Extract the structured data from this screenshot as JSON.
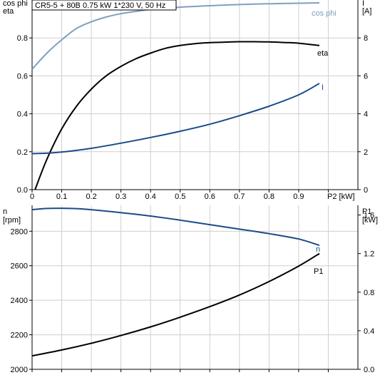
{
  "title": "CR5-5 + 80B   0.75 kW   1*230 V, 50 Hz",
  "colors": {
    "dark_curve": "#000000",
    "blue_curve": "#1a4c8a",
    "light_blue_curve": "#7f9fbf",
    "grid": "#cfcfcf"
  },
  "chart_data": [
    {
      "type": "line",
      "xlabel": "P2 [kW]",
      "x_ticks": [
        "0",
        "0.1",
        "0.2",
        "0.3",
        "0.4",
        "0.5",
        "0.6",
        "0.7",
        "0.8",
        "0.9"
      ],
      "xlim": [
        0,
        1.1
      ],
      "left_axis": {
        "label_top": "cos phi",
        "label_bottom": "eta",
        "ylim": [
          0,
          1
        ],
        "ticks": [
          "0.0",
          "0.2",
          "0.4",
          "0.6",
          "0.8"
        ]
      },
      "right_axis": {
        "label_top": "I",
        "label_bottom": "[A]",
        "ylim": [
          0,
          10
        ],
        "ticks": [
          "0",
          "2",
          "4",
          "6",
          "8"
        ]
      },
      "grid": true,
      "series": [
        {
          "name": "cos phi",
          "axis": "left",
          "color": "#7f9fbf",
          "x": [
            0,
            0.05,
            0.1,
            0.15,
            0.2,
            0.25,
            0.3,
            0.35,
            0.4,
            0.5,
            0.6,
            0.7,
            0.8,
            0.9,
            0.97
          ],
          "y": [
            0.635,
            0.72,
            0.79,
            0.85,
            0.885,
            0.91,
            0.928,
            0.94,
            0.95,
            0.962,
            0.97,
            0.976,
            0.98,
            0.983,
            0.985
          ]
        },
        {
          "name": "eta",
          "axis": "left",
          "color": "#000000",
          "x": [
            0.01,
            0.05,
            0.1,
            0.15,
            0.2,
            0.25,
            0.3,
            0.35,
            0.4,
            0.45,
            0.5,
            0.55,
            0.6,
            0.65,
            0.7,
            0.75,
            0.8,
            0.85,
            0.9,
            0.97
          ],
          "y": [
            0.0,
            0.16,
            0.32,
            0.44,
            0.53,
            0.6,
            0.65,
            0.69,
            0.72,
            0.745,
            0.76,
            0.77,
            0.775,
            0.778,
            0.78,
            0.78,
            0.779,
            0.776,
            0.772,
            0.76
          ]
        },
        {
          "name": "I",
          "axis": "right",
          "color": "#1a4c8a",
          "x": [
            0,
            0.05,
            0.1,
            0.15,
            0.2,
            0.3,
            0.4,
            0.5,
            0.6,
            0.7,
            0.8,
            0.9,
            0.97
          ],
          "y": [
            1.9,
            1.92,
            1.98,
            2.07,
            2.18,
            2.45,
            2.75,
            3.08,
            3.45,
            3.9,
            4.4,
            5.0,
            5.6
          ]
        }
      ]
    },
    {
      "type": "line",
      "xlim": [
        0,
        1.1
      ],
      "left_axis": {
        "label_top": "n",
        "label_bottom": "[rpm]",
        "ylim": [
          2000,
          2950
        ],
        "ticks": [
          "2000",
          "2200",
          "2400",
          "2600",
          "2800"
        ]
      },
      "right_axis": {
        "label_top": "P1",
        "label_bottom": "[kW]",
        "ylim": [
          0,
          1.7
        ],
        "ticks": [
          "0.0",
          "0.4",
          "0.8",
          "1.2",
          "1.6"
        ]
      },
      "grid": true,
      "series": [
        {
          "name": "n",
          "axis": "left",
          "color": "#1a4c8a",
          "x": [
            0,
            0.05,
            0.1,
            0.15,
            0.2,
            0.3,
            0.4,
            0.5,
            0.6,
            0.7,
            0.8,
            0.9,
            0.97
          ],
          "y": [
            2925,
            2932,
            2933,
            2931,
            2925,
            2908,
            2888,
            2864,
            2838,
            2812,
            2786,
            2755,
            2718
          ]
        },
        {
          "name": "P1",
          "axis": "right",
          "color": "#000000",
          "x": [
            0,
            0.1,
            0.2,
            0.3,
            0.4,
            0.5,
            0.6,
            0.7,
            0.8,
            0.9,
            0.97
          ],
          "y": [
            0.14,
            0.2,
            0.27,
            0.35,
            0.44,
            0.54,
            0.65,
            0.77,
            0.91,
            1.07,
            1.2
          ]
        }
      ]
    }
  ]
}
